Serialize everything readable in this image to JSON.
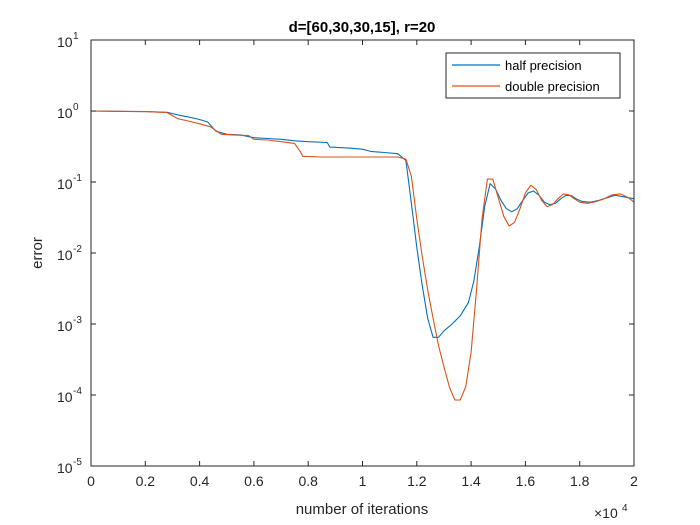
{
  "chart_data": {
    "type": "line",
    "title": "d=[60,30,30,15], r=20",
    "xlabel": "number of iterations",
    "ylabel": "error",
    "x_multiplier_label": "×10",
    "x_multiplier_exp": "4",
    "xlim": [
      0,
      20000
    ],
    "ylim": [
      1e-05,
      10
    ],
    "yscale": "log",
    "grid": false,
    "legend_position": "top-right",
    "x_ticks": [
      0,
      2000,
      4000,
      6000,
      8000,
      10000,
      12000,
      14000,
      16000,
      18000,
      20000
    ],
    "x_tick_labels": [
      "0",
      "0.2",
      "0.4",
      "0.6",
      "0.8",
      "1",
      "1.2",
      "1.4",
      "1.6",
      "1.8",
      "2"
    ],
    "y_ticks": [
      1e-05,
      0.0001,
      0.001,
      0.01,
      0.1,
      1,
      10
    ],
    "y_tick_base": "10",
    "y_tick_exps": [
      "-5",
      "-4",
      "-3",
      "-2",
      "-1",
      "0",
      "1"
    ],
    "series": [
      {
        "name": "half precision",
        "color": "#0072BD",
        "points": [
          [
            0,
            1.0
          ],
          [
            1000,
            0.99
          ],
          [
            2000,
            0.98
          ],
          [
            2800,
            0.96
          ],
          [
            3200,
            0.88
          ],
          [
            3600,
            0.82
          ],
          [
            4000,
            0.76
          ],
          [
            4300,
            0.7
          ],
          [
            4600,
            0.52
          ],
          [
            5000,
            0.47
          ],
          [
            5500,
            0.46
          ],
          [
            6000,
            0.42
          ],
          [
            6500,
            0.41
          ],
          [
            7000,
            0.4
          ],
          [
            7500,
            0.38
          ],
          [
            8000,
            0.37
          ],
          [
            8700,
            0.36
          ],
          [
            8800,
            0.31
          ],
          [
            9500,
            0.3
          ],
          [
            10000,
            0.29
          ],
          [
            10300,
            0.27
          ],
          [
            10800,
            0.26
          ],
          [
            11300,
            0.25
          ],
          [
            11600,
            0.2
          ],
          [
            11800,
            0.05
          ],
          [
            12000,
            0.012
          ],
          [
            12200,
            0.0035
          ],
          [
            12400,
            0.0012
          ],
          [
            12600,
            0.00065
          ],
          [
            12800,
            0.00065
          ],
          [
            13000,
            0.0008
          ],
          [
            13300,
            0.001
          ],
          [
            13600,
            0.0013
          ],
          [
            13900,
            0.002
          ],
          [
            14100,
            0.004
          ],
          [
            14300,
            0.012
          ],
          [
            14500,
            0.045
          ],
          [
            14700,
            0.095
          ],
          [
            14900,
            0.08
          ],
          [
            15100,
            0.055
          ],
          [
            15300,
            0.042
          ],
          [
            15500,
            0.038
          ],
          [
            15700,
            0.042
          ],
          [
            15900,
            0.055
          ],
          [
            16100,
            0.07
          ],
          [
            16300,
            0.075
          ],
          [
            16500,
            0.065
          ],
          [
            16700,
            0.052
          ],
          [
            16900,
            0.048
          ],
          [
            17100,
            0.05
          ],
          [
            17300,
            0.058
          ],
          [
            17500,
            0.065
          ],
          [
            17700,
            0.064
          ],
          [
            17900,
            0.057
          ],
          [
            18100,
            0.053
          ],
          [
            18400,
            0.052
          ],
          [
            18700,
            0.055
          ],
          [
            19000,
            0.06
          ],
          [
            19300,
            0.065
          ],
          [
            19600,
            0.062
          ],
          [
            20000,
            0.058
          ]
        ]
      },
      {
        "name": "double precision",
        "color": "#D95319",
        "points": [
          [
            0,
            1.0
          ],
          [
            1000,
            0.99
          ],
          [
            2000,
            0.98
          ],
          [
            2800,
            0.95
          ],
          [
            3200,
            0.78
          ],
          [
            3600,
            0.72
          ],
          [
            4000,
            0.66
          ],
          [
            4400,
            0.6
          ],
          [
            4800,
            0.47
          ],
          [
            5200,
            0.46
          ],
          [
            5800,
            0.45
          ],
          [
            6000,
            0.4
          ],
          [
            6500,
            0.39
          ],
          [
            7000,
            0.37
          ],
          [
            7500,
            0.35
          ],
          [
            7700,
            0.27
          ],
          [
            7800,
            0.23
          ],
          [
            8500,
            0.225
          ],
          [
            9500,
            0.225
          ],
          [
            10500,
            0.225
          ],
          [
            11300,
            0.225
          ],
          [
            11600,
            0.21
          ],
          [
            11800,
            0.12
          ],
          [
            12000,
            0.03
          ],
          [
            12200,
            0.009
          ],
          [
            12400,
            0.003
          ],
          [
            12600,
            0.0012
          ],
          [
            12800,
            0.0005
          ],
          [
            13000,
            0.00025
          ],
          [
            13200,
            0.00013
          ],
          [
            13400,
            8.5e-05
          ],
          [
            13600,
            8.5e-05
          ],
          [
            13800,
            0.00013
          ],
          [
            14000,
            0.0004
          ],
          [
            14200,
            0.003
          ],
          [
            14400,
            0.03
          ],
          [
            14600,
            0.11
          ],
          [
            14800,
            0.11
          ],
          [
            15000,
            0.06
          ],
          [
            15200,
            0.033
          ],
          [
            15400,
            0.024
          ],
          [
            15600,
            0.027
          ],
          [
            15800,
            0.042
          ],
          [
            16000,
            0.07
          ],
          [
            16200,
            0.09
          ],
          [
            16400,
            0.078
          ],
          [
            16600,
            0.055
          ],
          [
            16800,
            0.045
          ],
          [
            17000,
            0.048
          ],
          [
            17200,
            0.058
          ],
          [
            17400,
            0.068
          ],
          [
            17600,
            0.066
          ],
          [
            17800,
            0.058
          ],
          [
            18000,
            0.052
          ],
          [
            18300,
            0.05
          ],
          [
            18600,
            0.053
          ],
          [
            18900,
            0.058
          ],
          [
            19200,
            0.066
          ],
          [
            19500,
            0.068
          ],
          [
            19800,
            0.06
          ],
          [
            20000,
            0.052
          ]
        ]
      }
    ]
  }
}
